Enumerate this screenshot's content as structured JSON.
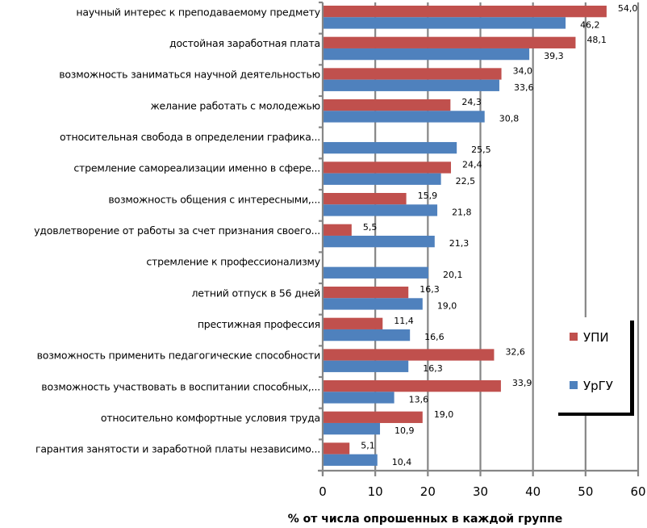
{
  "chart_data": {
    "type": "bar",
    "orientation": "horizontal",
    "title": "",
    "xlabel": "% от числа опрошенных в каждой группе",
    "ylabel": "",
    "xlim": [
      0,
      60
    ],
    "xticks": [
      0,
      10,
      20,
      30,
      40,
      50,
      60
    ],
    "xtick_labels": [
      "0",
      "10",
      "20",
      "30",
      "40",
      "50",
      "60"
    ],
    "grid": "vertical",
    "legend_position": "right",
    "categories": [
      "научный интерес к преподаваемому предмету",
      "достойная заработная плата",
      "возможность заниматься научной деятельностью",
      "желание работать с молодежью",
      "относительная свобода в определении графика...",
      "стремление самореализации именно в сфере...",
      "возможность общения с интересными,...",
      "удовлетворение от работы за счет признания своего...",
      "стремление к профессионализму",
      "летний отпуск в 56 дней",
      "престижная профессия",
      "возможность применить педагогические способности",
      "возможность участвовать в воспитании способных,...",
      "относительно комфортные условия труда",
      "гарантия занятости и заработной платы независимо..."
    ],
    "series": [
      {
        "name": "УПИ",
        "color": "#C0504D",
        "values": [
          54.0,
          48.1,
          34.0,
          24.3,
          null,
          24.4,
          15.9,
          5.5,
          null,
          16.3,
          11.4,
          32.6,
          33.9,
          19.0,
          5.1
        ],
        "labels": [
          "54,0",
          "48,1",
          "34,0",
          "24,3",
          "",
          "24,4",
          "15,9",
          "5,5",
          "",
          "16,3",
          "11,4",
          "32,6",
          "33,9",
          "19,0",
          "5,1"
        ]
      },
      {
        "name": "УрГУ",
        "color": "#4F81BD",
        "values": [
          46.2,
          39.3,
          33.6,
          30.8,
          25.5,
          22.5,
          21.8,
          21.3,
          20.1,
          19.0,
          16.6,
          16.3,
          13.6,
          10.9,
          10.4
        ],
        "labels": [
          "46,2",
          "39,3",
          "33,6",
          "30,8",
          "25,5",
          "22,5",
          "21,8",
          "21,3",
          "20,1",
          "19,0",
          "16,6",
          "16,3",
          "13,6",
          "10,9",
          "10,4"
        ]
      }
    ]
  },
  "colors": {
    "gridline": "#868686",
    "axis": "#868686",
    "legend_shadow": "#000000"
  }
}
